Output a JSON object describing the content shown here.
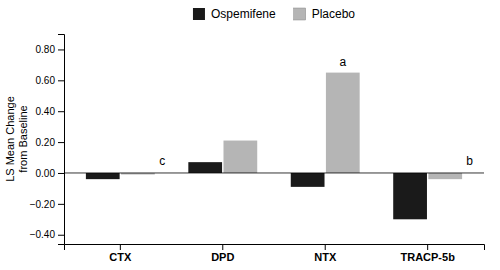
{
  "chart_data": {
    "type": "bar",
    "categories": [
      "CTX",
      "DPD",
      "NTX",
      "TRACP-5b"
    ],
    "series": [
      {
        "name": "Ospemifene",
        "color": "#1a1a1a",
        "values": [
          -0.04,
          0.07,
          -0.09,
          -0.3
        ]
      },
      {
        "name": "Placebo",
        "color": "#b5b5b5",
        "values": [
          -0.01,
          0.21,
          0.65,
          -0.04
        ]
      }
    ],
    "ylabel": "LS Mean Change\nfrom Baseline",
    "ylim": [
      -0.46,
      0.9
    ],
    "yticks": [
      {
        "value": -0.4,
        "label": "−0.40"
      },
      {
        "value": -0.2,
        "label": "−0.20"
      },
      {
        "value": 0.0,
        "label": "0.00"
      },
      {
        "value": 0.2,
        "label": "0.20"
      },
      {
        "value": 0.4,
        "label": "0.40"
      },
      {
        "value": 0.6,
        "label": "0.60"
      },
      {
        "value": 0.8,
        "label": "0.80"
      }
    ],
    "annotations": [
      {
        "text": "c",
        "category": "CTX",
        "y": 0.04
      },
      {
        "text": "a",
        "category": "NTX",
        "series": "Placebo",
        "y": 0.68
      },
      {
        "text": "b",
        "category": "TRACP-5b",
        "y": 0.04
      }
    ],
    "legend": "top",
    "grid": false
  }
}
